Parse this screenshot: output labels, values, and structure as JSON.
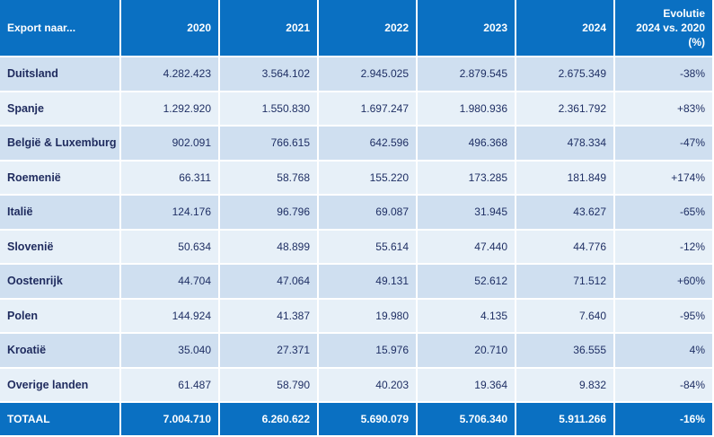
{
  "chart_data": {
    "type": "table",
    "columns": [
      "Export naar...",
      "2020",
      "2021",
      "2022",
      "2023",
      "2024",
      "Evolutie 2024 vs. 2020 (%)"
    ],
    "evolution_header_lines": [
      "Evolutie",
      "2024 vs. 2020",
      "(%)"
    ],
    "rows": [
      {
        "country": "Duitsland",
        "values": [
          "4.282.423",
          "3.564.102",
          "2.945.025",
          "2.879.545",
          "2.675.349"
        ],
        "evolution": "-38%"
      },
      {
        "country": "Spanje",
        "values": [
          "1.292.920",
          "1.550.830",
          "1.697.247",
          "1.980.936",
          "2.361.792"
        ],
        "evolution": "+83%"
      },
      {
        "country": "België & Luxemburg",
        "values": [
          "902.091",
          "766.615",
          "642.596",
          "496.368",
          "478.334"
        ],
        "evolution": "-47%"
      },
      {
        "country": "Roemenië",
        "values": [
          "66.311",
          "58.768",
          "155.220",
          "173.285",
          "181.849"
        ],
        "evolution": "+174%"
      },
      {
        "country": "Italië",
        "values": [
          "124.176",
          "96.796",
          "69.087",
          "31.945",
          "43.627"
        ],
        "evolution": "-65%"
      },
      {
        "country": "Slovenië",
        "values": [
          "50.634",
          "48.899",
          "55.614",
          "47.440",
          "44.776"
        ],
        "evolution": "-12%"
      },
      {
        "country": "Oostenrijk",
        "values": [
          "44.704",
          "47.064",
          "49.131",
          "52.612",
          "71.512"
        ],
        "evolution": "+60%"
      },
      {
        "country": "Polen",
        "values": [
          "144.924",
          "41.387",
          "19.980",
          "4.135",
          "7.640"
        ],
        "evolution": "-95%"
      },
      {
        "country": "Kroatië",
        "values": [
          "35.040",
          "27.371",
          "15.976",
          "20.710",
          "36.555"
        ],
        "evolution": "4%"
      },
      {
        "country": "Overige landen",
        "values": [
          "61.487",
          "58.790",
          "40.203",
          "19.364",
          "9.832"
        ],
        "evolution": "-84%"
      }
    ],
    "total": {
      "label": "TOTAAL",
      "values": [
        "7.004.710",
        "6.260.622",
        "5.690.079",
        "5.706.340",
        "5.911.266"
      ],
      "evolution": "-16%"
    }
  },
  "colors": {
    "header_bg": "#0a70c2",
    "row_dark": "#cfdff0",
    "row_light": "#e7f0f8",
    "text_dark": "#1f2f64"
  }
}
